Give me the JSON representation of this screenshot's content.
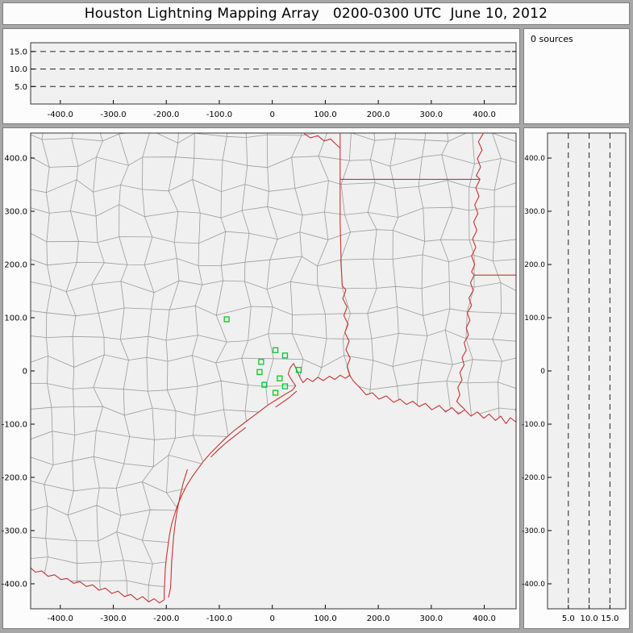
{
  "title": "Houston Lightning Mapping Array   0200-0300 UTC  June 10, 2012",
  "panels": {
    "sources": {
      "label": "0 sources"
    }
  },
  "colors": {
    "chrome_bg": "#a7a7a7",
    "panel_bg": "#fcfcfc",
    "plot_bg": "#f0f0f0",
    "frame": "#333333",
    "grid": "#222222",
    "state": "#c83232",
    "county": "#9b9b9b",
    "station": "#00cc22",
    "text": "#000000"
  },
  "chart_data": [
    {
      "id": "ew_altitude",
      "type": "scatter",
      "title": "",
      "xlabel": "",
      "ylabel": "",
      "xlim": [
        -456,
        460
      ],
      "ylim": [
        0,
        17.5
      ],
      "x_ticks": [
        -400,
        -300,
        -200,
        -100,
        0,
        100,
        200,
        300,
        400
      ],
      "x_tick_labels": [
        "-400.0",
        "-300.0",
        "-200.0",
        "-100.0",
        "0",
        "100.0",
        "200.0",
        "300.0",
        "400.0"
      ],
      "y_gridlines": [
        5,
        10,
        15
      ],
      "y_tick_labels": [
        "5.0",
        "10.0",
        "15.0"
      ],
      "grid_style": "dashed",
      "legend": "none",
      "points": [],
      "n_sources": 0
    },
    {
      "id": "plan_view",
      "type": "scatter",
      "title": "",
      "xlabel": "",
      "ylabel": "",
      "xlim": [
        -456,
        460
      ],
      "ylim": [
        -447,
        447
      ],
      "x_ticks": [
        -400,
        -300,
        -200,
        -100,
        0,
        100,
        200,
        300,
        400
      ],
      "x_tick_labels": [
        "-400.0",
        "-300.0",
        "-200.0",
        "-100.0",
        "0",
        "100.0",
        "200.0",
        "300.0",
        "400.0"
      ],
      "y_ticks": [
        400,
        300,
        200,
        100,
        0,
        -100,
        -200,
        -300,
        -400
      ],
      "y_tick_labels": [
        "400.0",
        "300.0",
        "200.0",
        "100.0",
        "0",
        "-100.0",
        "-200.0",
        "-300.0",
        "-400.0"
      ],
      "grid_style": "none",
      "points": [],
      "n_sources": 0,
      "stations": [
        [
          -86,
          97
        ],
        [
          6,
          39
        ],
        [
          24,
          29
        ],
        [
          -21,
          17
        ],
        [
          -24,
          -2
        ],
        [
          -15,
          -26
        ],
        [
          6,
          -41
        ],
        [
          24,
          -29
        ],
        [
          50,
          2
        ],
        [
          14,
          -14
        ]
      ],
      "basemap": {
        "description": "Texas / Louisiana county map centered on Houston LMA network",
        "state_line_color": "#c83232",
        "county_line_color": "#9b9b9b",
        "station_marker": "open-green-square"
      }
    },
    {
      "id": "ns_altitude",
      "type": "scatter",
      "title": "",
      "xlabel": "",
      "ylabel": "",
      "xlim": [
        0,
        18.8
      ],
      "ylim": [
        -447,
        447
      ],
      "x_gridlines": [
        5,
        10,
        15
      ],
      "x_tick_labels": [
        "5.0",
        "10.0",
        "15.0"
      ],
      "y_ticks": [
        400,
        300,
        200,
        100,
        0,
        -100,
        -200,
        -300,
        -400
      ],
      "y_tick_labels": [
        "400.0",
        "300.0",
        "200.0",
        "100.0",
        "0",
        "-100.0",
        "-200.0",
        "-300.0",
        "-400.0"
      ],
      "grid_style": "dashed",
      "points": [],
      "n_sources": 0
    }
  ]
}
